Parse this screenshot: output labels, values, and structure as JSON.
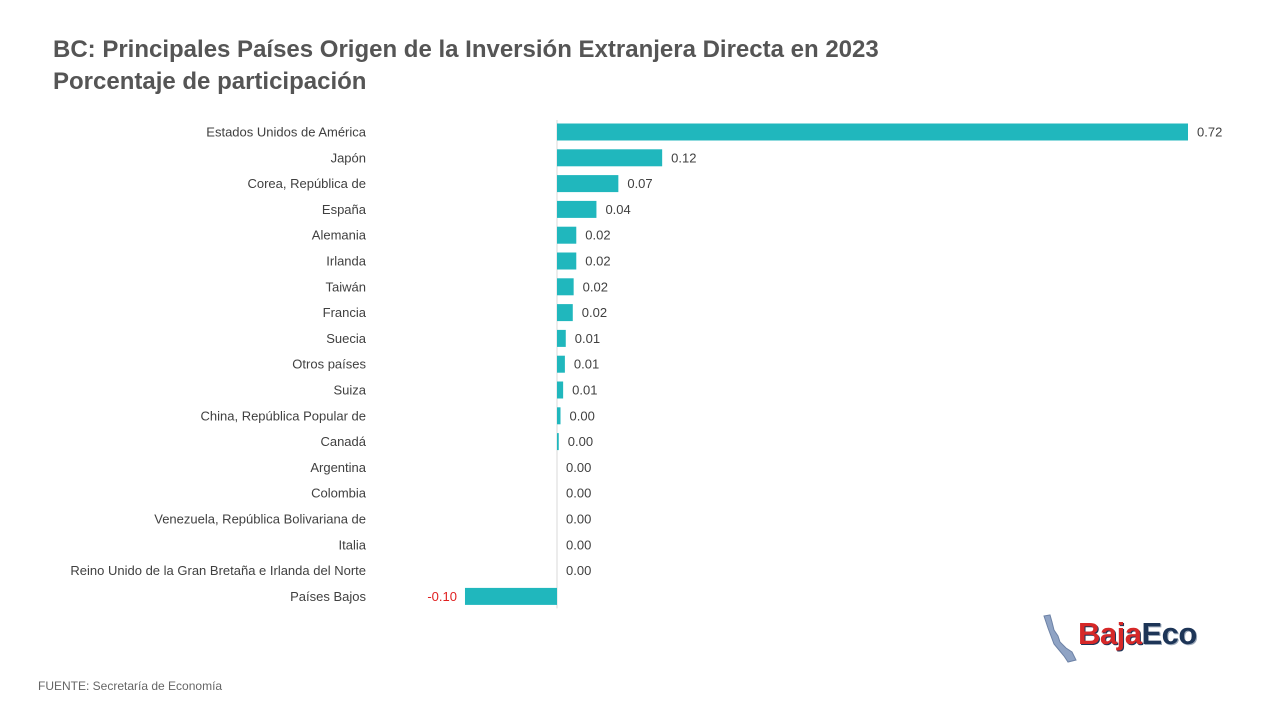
{
  "title": {
    "line1": "BC: Principales Países Origen de la Inversión Extranjera Directa en 2023",
    "line2": "Porcentaje de participación"
  },
  "source": "FUENTE: Secretaría de Economía",
  "logo": {
    "part1": "Baja",
    "part2": "Eco"
  },
  "colors": {
    "bar": "#20b7bd",
    "negative_label": "#e02020",
    "label": "#404040"
  },
  "chart_data": {
    "type": "bar",
    "orientation": "horizontal",
    "categories": [
      "Estados Unidos de América",
      "Japón",
      "Corea, República de",
      "España",
      "Alemania",
      "Irlanda",
      "Taiwán",
      "Francia",
      "Suecia",
      "Otros países",
      "Suiza",
      "China, República Popular de",
      "Canadá",
      "Argentina",
      "Colombia",
      "Venezuela, República Bolivariana de",
      "Italia",
      "Reino Unido de la Gran Bretaña e Irlanda del Norte",
      "Países Bajos"
    ],
    "values": [
      0.72,
      0.12,
      0.07,
      0.045,
      0.022,
      0.022,
      0.019,
      0.018,
      0.01,
      0.009,
      0.007,
      0.004,
      0.002,
      0.0,
      0.0,
      0.0,
      0.0,
      0.0,
      -0.105
    ],
    "labels": [
      "0.72",
      "0.12",
      "0.07",
      "0.04",
      "0.02",
      "0.02",
      "0.02",
      "0.02",
      "0.01",
      "0.01",
      "0.01",
      "0.00",
      "0.00",
      "0.00",
      "0.00",
      "0.00",
      "0.00",
      "0.00",
      "-0.10"
    ],
    "xlim": [
      -0.105,
      0.72
    ],
    "grid": false,
    "legend": "none"
  }
}
